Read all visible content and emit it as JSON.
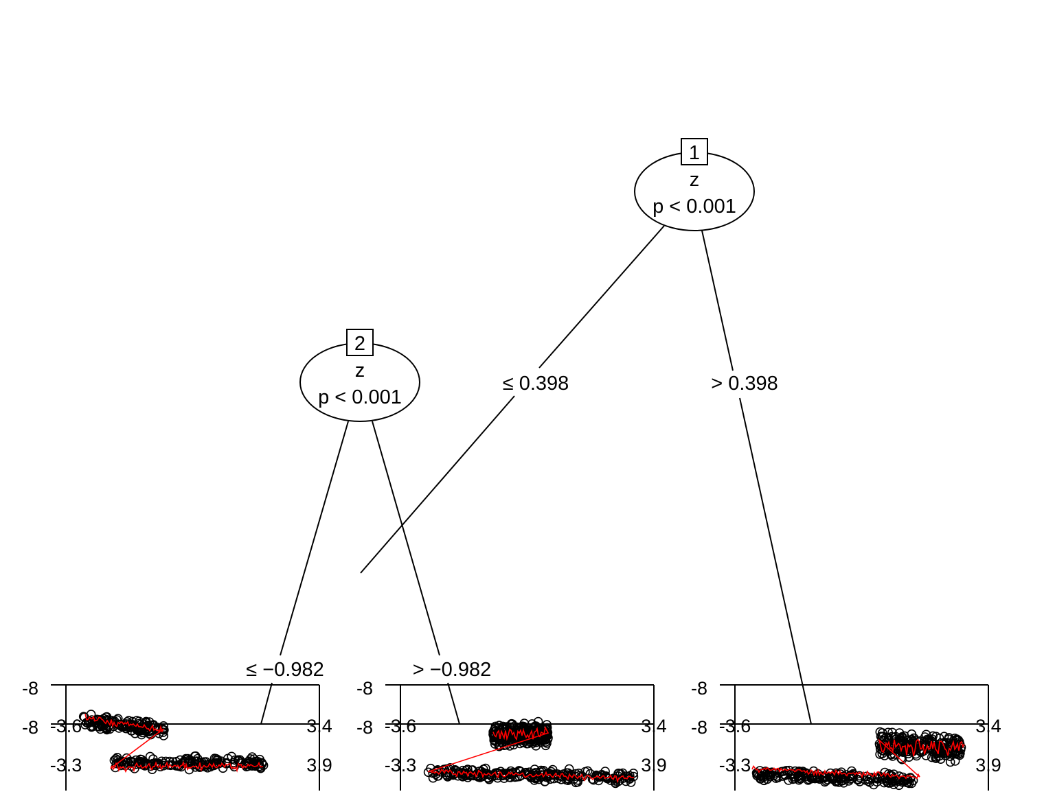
{
  "tree": {
    "nodes": [
      {
        "id": "1",
        "variable": "z",
        "pvalue": "p < 0.001"
      },
      {
        "id": "2",
        "variable": "z",
        "pvalue": "p < 0.001"
      }
    ],
    "edges": [
      {
        "from": "1",
        "to": "2",
        "label": "≤ 0.398"
      },
      {
        "from": "1",
        "to": "leaf-3",
        "label": "> 0.398"
      },
      {
        "from": "2",
        "to": "leaf-1",
        "label": "≤ −0.982"
      },
      {
        "from": "2",
        "to": "leaf-2",
        "label": "> −0.982"
      }
    ]
  },
  "leaf_panels": [
    {
      "y_top_label": "-8",
      "y_mid_label": "-8",
      "x_left_label": "-3.6",
      "x_right_label": "3.4",
      "x_left_label_2": "-3.3",
      "x_right_label_2": "3.9"
    },
    {
      "y_top_label": "-8",
      "y_mid_label": "-8",
      "x_left_label": "-3.6",
      "x_right_label": "3.4",
      "x_left_label_2": "-3.3",
      "x_right_label_2": "3.9"
    },
    {
      "y_top_label": "-8",
      "y_mid_label": "-8",
      "x_left_label": "-3.6",
      "x_right_label": "3.4",
      "x_left_label_2": "-3.3",
      "x_right_label_2": "3.9"
    }
  ],
  "colors": {
    "points": "#000000",
    "fit_line": "#ff0000",
    "edges": "#000000"
  }
}
